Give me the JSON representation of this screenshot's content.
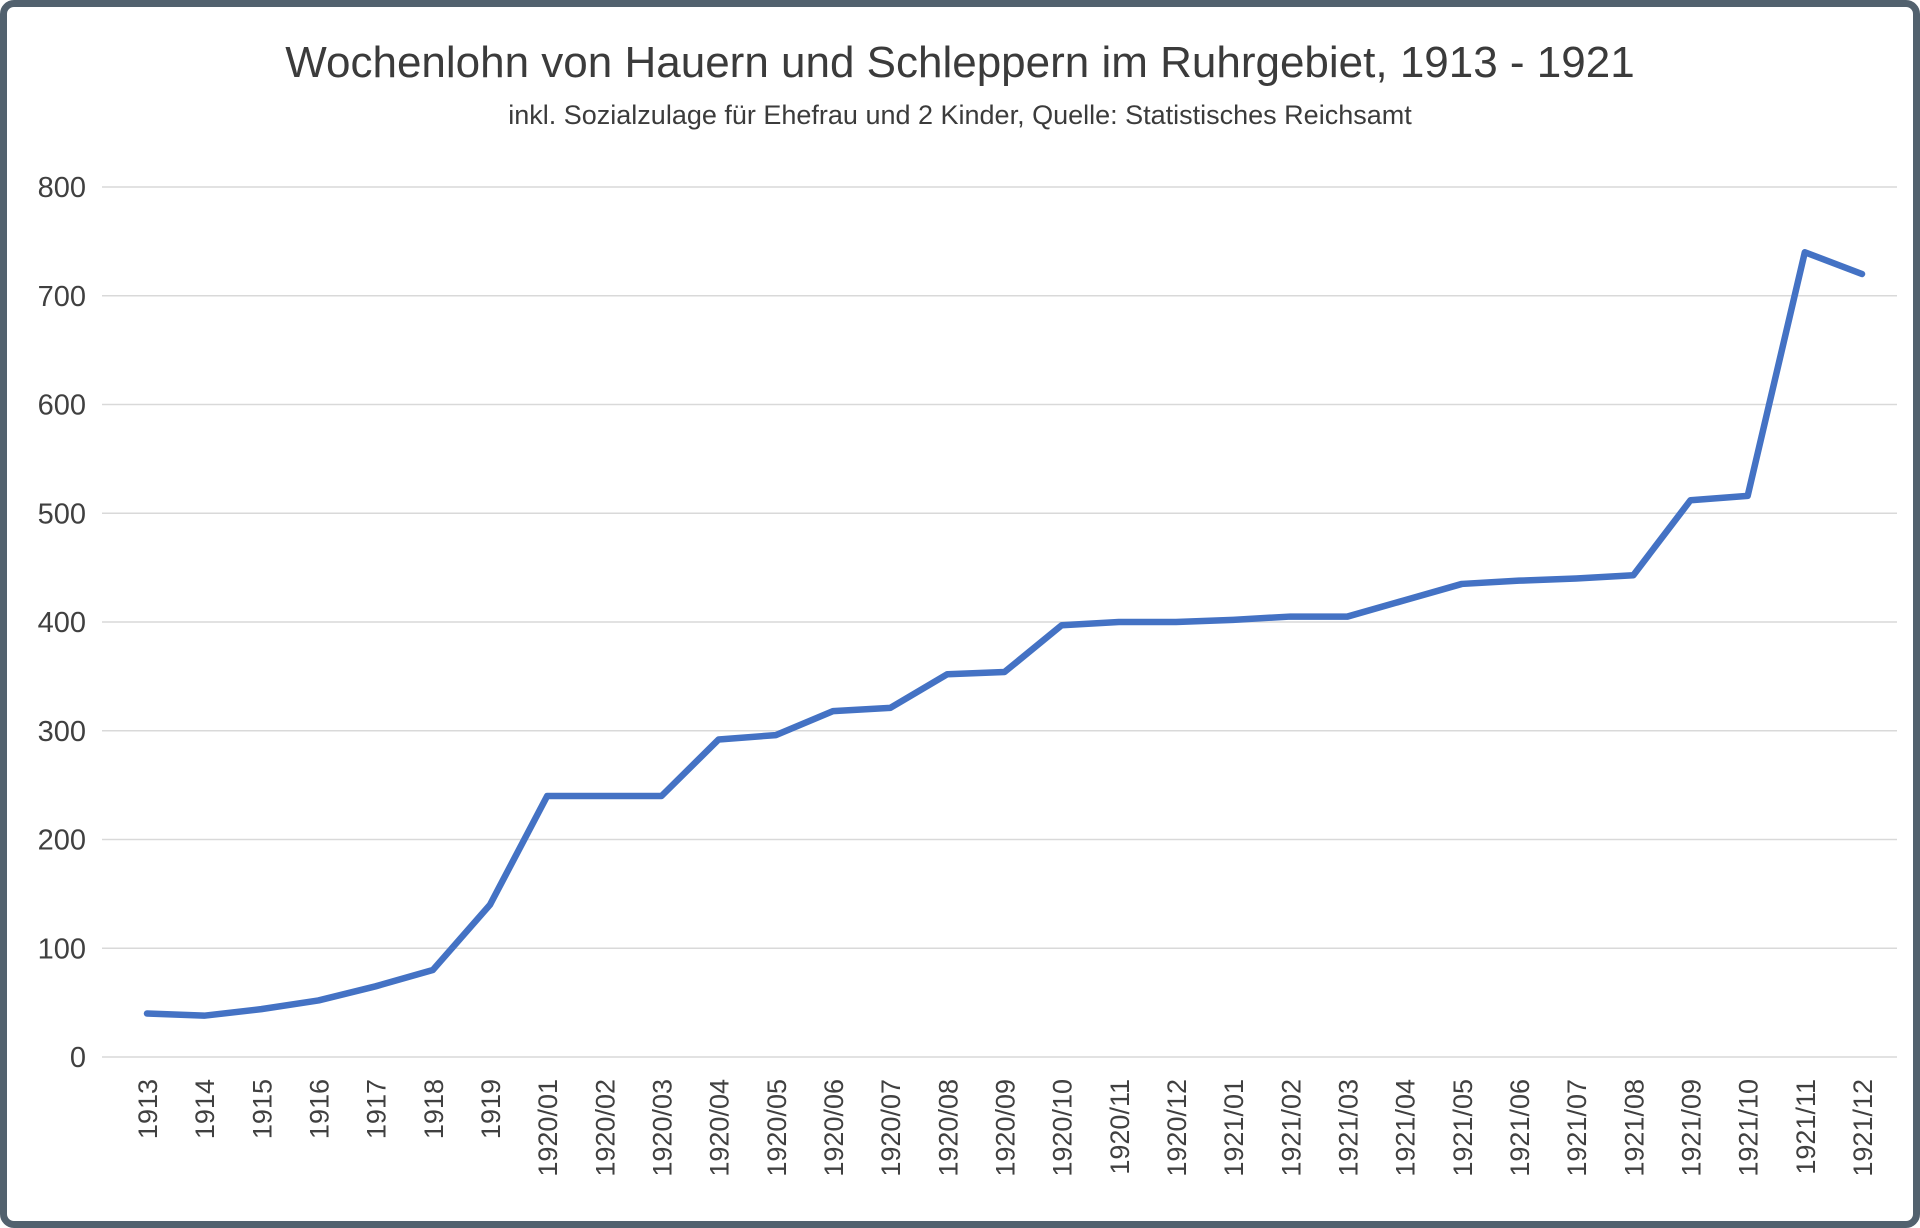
{
  "chart_data": {
    "type": "line",
    "title": "Wochenlohn von Hauern und Schleppern im Ruhrgebiet, 1913 - 1921",
    "subtitle": "inkl. Sozialzulage für Ehefrau und 2 Kinder, Quelle: Statistisches Reichsamt",
    "categories": [
      "1913",
      "1914",
      "1915",
      "1916",
      "1917",
      "1918",
      "1919",
      "1920/01",
      "1920/02",
      "1920/03",
      "1920/04",
      "1920/05",
      "1920/06",
      "1920/07",
      "1920/08",
      "1920/09",
      "1920/10",
      "1920/11",
      "1920/12",
      "1921/01",
      "1921/02",
      "1921/03",
      "1921/04",
      "1921/05",
      "1921/06",
      "1921/07",
      "1921/08",
      "1921/09",
      "1921/10",
      "1921/11",
      "1921/12"
    ],
    "values": [
      40,
      38,
      44,
      52,
      65,
      80,
      140,
      240,
      240,
      240,
      292,
      296,
      318,
      321,
      352,
      354,
      397,
      400,
      400,
      402,
      405,
      405,
      420,
      435,
      438,
      440,
      443,
      512,
      516,
      740,
      720
    ],
    "xlabel": "",
    "ylabel": "",
    "ylim": [
      0,
      800
    ],
    "yticks": [
      0,
      100,
      200,
      300,
      400,
      500,
      600,
      700,
      800
    ],
    "grid": true,
    "legend": "none",
    "line_color": "#4472C4",
    "grid_color": "#d9d9d9",
    "axis_text_color": "#404040"
  }
}
